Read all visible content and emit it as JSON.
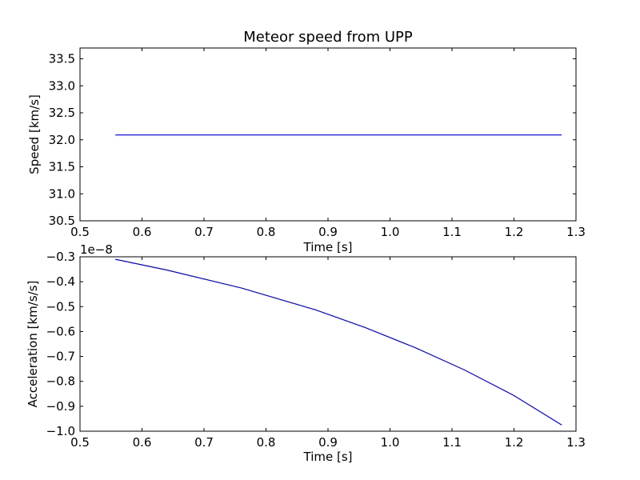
{
  "chart_data": [
    {
      "type": "line",
      "title": "Meteor speed from  UPP",
      "xlabel": "Time [s]",
      "ylabel": "Speed [km/s]",
      "xlim": [
        0.5,
        1.3
      ],
      "ylim": [
        30.5,
        33.7
      ],
      "xticks": [
        0.5,
        0.6,
        0.7,
        0.8,
        0.9,
        1.0,
        1.1,
        1.2,
        1.3
      ],
      "xtick_labels": [
        "0.5",
        "0.6",
        "0.7",
        "0.8",
        "0.9",
        "1.0",
        "1.1",
        "1.2",
        "1.3"
      ],
      "yticks": [
        30.5,
        31.0,
        31.5,
        32.0,
        32.5,
        33.0,
        33.5
      ],
      "ytick_labels": [
        "30.5",
        "31.0",
        "31.5",
        "32.0",
        "32.5",
        "33.0",
        "33.5"
      ],
      "grid": false,
      "line_color": "#0000ff",
      "series": [
        {
          "x": [
            0.557,
            1.277
          ],
          "y": [
            32.09,
            32.09
          ]
        }
      ]
    },
    {
      "type": "line",
      "title": "",
      "xlabel": "Time [s]",
      "ylabel": "Acceleration [km/s/s]",
      "offset_text": "1e−8",
      "xlim": [
        0.5,
        1.3
      ],
      "ylim": [
        -1.0,
        -0.3
      ],
      "xticks": [
        0.5,
        0.6,
        0.7,
        0.8,
        0.9,
        1.0,
        1.1,
        1.2,
        1.3
      ],
      "xtick_labels": [
        "0.5",
        "0.6",
        "0.7",
        "0.8",
        "0.9",
        "1.0",
        "1.1",
        "1.2",
        "1.3"
      ],
      "yticks": [
        -1.0,
        -0.9,
        -0.8,
        -0.7,
        -0.6,
        -0.5,
        -0.4,
        -0.3
      ],
      "ytick_labels": [
        "−1.0",
        "−0.9",
        "−0.8",
        "−0.7",
        "−0.6",
        "−0.5",
        "−0.4",
        "−0.3"
      ],
      "grid": false,
      "line_color": "#0000ff",
      "series": [
        {
          "x": [
            0.557,
            0.64,
            0.76,
            0.88,
            0.96,
            1.04,
            1.12,
            1.2,
            1.277
          ],
          "y": [
            -0.31,
            -0.353,
            -0.425,
            -0.513,
            -0.584,
            -0.664,
            -0.754,
            -0.857,
            -0.975
          ]
        }
      ]
    }
  ]
}
